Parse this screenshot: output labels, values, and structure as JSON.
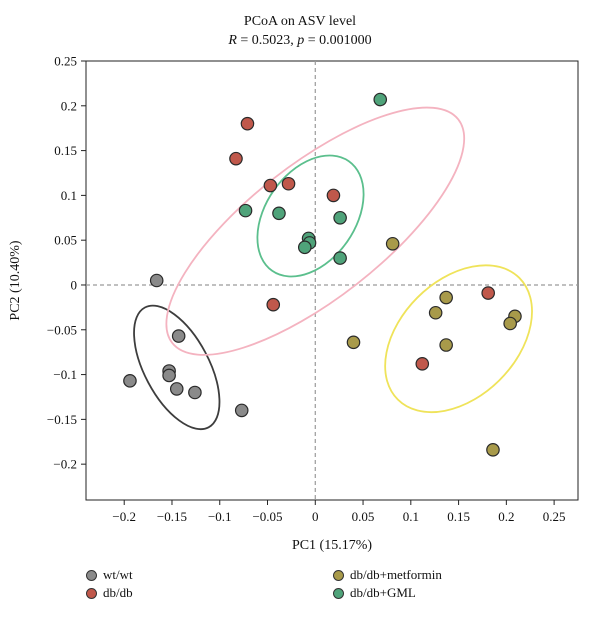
{
  "chart_data": {
    "type": "scatter",
    "title": "PCoA on ASV level",
    "subtitle_parts": {
      "r_label": "R",
      "r_value": " = 0.5023, ",
      "p_label": "p",
      "p_value": " = 0.001000"
    },
    "xlabel": "PC1 (15.17%)",
    "ylabel": "PC2 (10.40%)",
    "xlim": [
      -0.24,
      0.275
    ],
    "ylim": [
      -0.24,
      0.25
    ],
    "xticks": [
      -0.2,
      -0.15,
      -0.1,
      -0.05,
      0,
      0.05,
      0.1,
      0.15,
      0.2,
      0.25
    ],
    "xtick_labels": [
      "−0.2",
      "−0.15",
      "−0.1",
      "−0.05",
      "0",
      "0.05",
      "0.1",
      "0.15",
      "0.2",
      "0.25"
    ],
    "yticks": [
      -0.2,
      -0.15,
      -0.1,
      -0.05,
      0,
      0.05,
      0.1,
      0.15,
      0.2,
      0.25
    ],
    "ytick_labels": [
      "−0.2",
      "−0.15",
      "−0.1",
      "−0.05",
      "0",
      "0.05",
      "0.1",
      "0.15",
      "0.2",
      "0.25"
    ],
    "reference_lines": {
      "x": 0,
      "y": 0,
      "style": "dashed"
    },
    "grid": false,
    "legend_position": "bottom",
    "series": [
      {
        "name": "wt/wt",
        "color": "#8a8a8a",
        "ellipse_color": "#3d3d3d",
        "points": [
          [
            -0.166,
            0.005
          ],
          [
            -0.194,
            -0.107
          ],
          [
            -0.153,
            -0.096
          ],
          [
            -0.153,
            -0.101
          ],
          [
            -0.143,
            -0.057
          ],
          [
            -0.145,
            -0.116
          ],
          [
            -0.126,
            -0.12
          ],
          [
            -0.077,
            -0.14
          ]
        ],
        "ellipse": {
          "cx": -0.145,
          "cy": -0.092,
          "rx": 0.071,
          "ry": 0.036,
          "angle_deg": 62
        }
      },
      {
        "name": "db/db",
        "color": "#c0584b",
        "ellipse_color": "#f4b3c0",
        "points": [
          [
            -0.071,
            0.18
          ],
          [
            -0.083,
            0.141
          ],
          [
            -0.047,
            0.111
          ],
          [
            -0.028,
            0.113
          ],
          [
            0.019,
            0.1
          ],
          [
            -0.044,
            -0.022
          ],
          [
            0.112,
            -0.088
          ],
          [
            0.181,
            -0.009
          ]
        ],
        "ellipse": {
          "cx": 0.0,
          "cy": 0.06,
          "rx": 0.19,
          "ry": 0.075,
          "angle_deg": -38
        }
      },
      {
        "name": "db/db+metformin",
        "color": "#a89a4a",
        "ellipse_color": "#efe35a",
        "points": [
          [
            0.081,
            0.046
          ],
          [
            0.137,
            -0.014
          ],
          [
            0.126,
            -0.031
          ],
          [
            0.209,
            -0.035
          ],
          [
            0.204,
            -0.043
          ],
          [
            0.137,
            -0.067
          ],
          [
            0.04,
            -0.064
          ],
          [
            0.186,
            -0.184
          ]
        ],
        "ellipse": {
          "cx": 0.15,
          "cy": -0.06,
          "rx": 0.09,
          "ry": 0.065,
          "angle_deg": -45
        }
      },
      {
        "name": "db/db+GML",
        "color": "#4fa37a",
        "ellipse_color": "#5bbf8d",
        "points": [
          [
            0.068,
            0.207
          ],
          [
            -0.073,
            0.083
          ],
          [
            -0.038,
            0.08
          ],
          [
            0.026,
            0.075
          ],
          [
            -0.007,
            0.052
          ],
          [
            -0.006,
            0.047
          ],
          [
            -0.011,
            0.042
          ],
          [
            0.026,
            0.03
          ]
        ],
        "ellipse": {
          "cx": -0.005,
          "cy": 0.077,
          "rx": 0.07,
          "ry": 0.05,
          "angle_deg": -55
        }
      }
    ]
  }
}
